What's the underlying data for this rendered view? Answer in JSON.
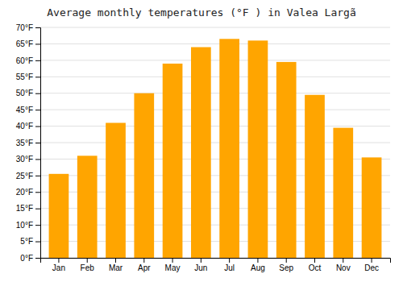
{
  "chart_data": {
    "type": "bar",
    "title": "Average monthly temperatures (°F ) in Valea Largã",
    "categories": [
      "Jan",
      "Feb",
      "Mar",
      "Apr",
      "May",
      "Jun",
      "Jul",
      "Aug",
      "Sep",
      "Oct",
      "Nov",
      "Dec"
    ],
    "values": [
      25.5,
      31.0,
      41.0,
      50.0,
      59.0,
      64.0,
      66.5,
      66.0,
      59.5,
      49.5,
      39.5,
      30.5
    ],
    "color": "#FFA500",
    "ylim": [
      0,
      70
    ],
    "yticks": [
      {
        "value": 0,
        "label": "0°F"
      },
      {
        "value": 5,
        "label": "5°F"
      },
      {
        "value": 10,
        "label": "10°F"
      },
      {
        "value": 15,
        "label": "15°F"
      },
      {
        "value": 20,
        "label": "20°F"
      },
      {
        "value": 25,
        "label": "25°F"
      },
      {
        "value": 30,
        "label": "30°F"
      },
      {
        "value": 35,
        "label": "35°F"
      },
      {
        "value": 40,
        "label": "40°F"
      },
      {
        "value": 45,
        "label": "45°F"
      },
      {
        "value": 50,
        "label": "50°F"
      },
      {
        "value": 55,
        "label": "55°F"
      },
      {
        "value": 60,
        "label": "60°F"
      },
      {
        "value": 65,
        "label": "65°F"
      },
      {
        "value": 70,
        "label": "70°F"
      }
    ],
    "grid": true
  }
}
